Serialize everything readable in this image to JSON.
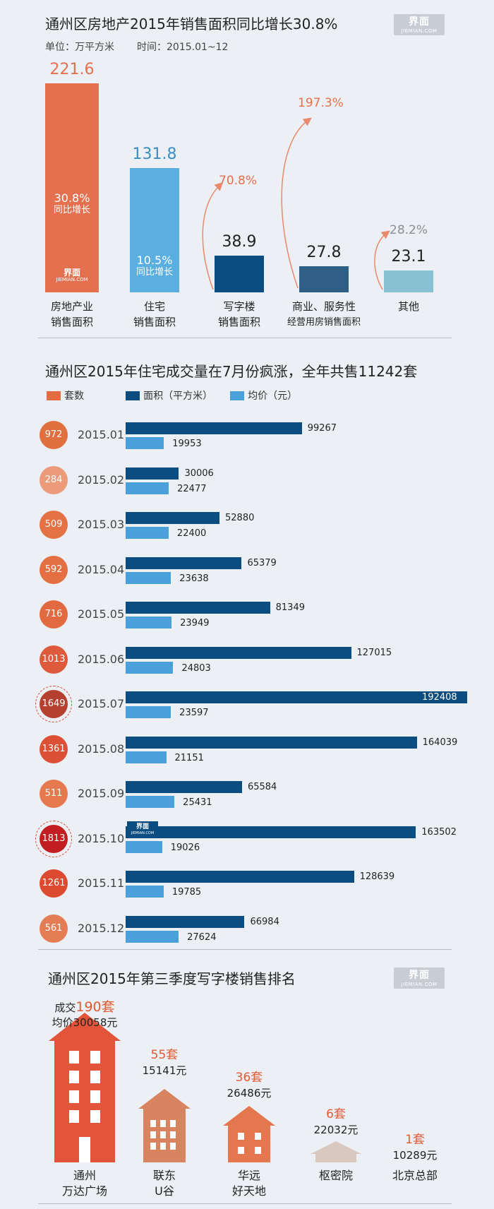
{
  "brand": {
    "logo_cn": "界面",
    "logo_en": "JIEMIAN.COM"
  },
  "section1": {
    "title": "通州区房地产2015年销售面积同比增长30.8%",
    "unit": "单位：万平方米",
    "period": "时间：2015.01~12"
  },
  "section2": {
    "title": "通州区2015年住宅成交量在7月份疯涨，全年共售11242套",
    "legend": [
      "套数",
      "面积（平方米）",
      "均价（元）"
    ]
  },
  "section3": {
    "title": "通州区2015年第三季度写字楼销售排名"
  },
  "chart_data": [
    {
      "type": "bar",
      "title": "通州区房地产2015年销售面积同比增长30.8%",
      "ylabel": "万平方米",
      "categories": [
        "房地产业\n销售面积",
        "住宅\n销售面积",
        "写字楼\n销售面积",
        "商业、服务性\n经营用房销售面积",
        "其他"
      ],
      "values": [
        221.6,
        131.8,
        38.9,
        27.8,
        23.1
      ],
      "value_labels": [
        "221.6",
        "131.8",
        "38.9",
        "27.8",
        "23.1"
      ],
      "growth_labels": [
        "30.8%",
        "10.5%",
        "70.8%",
        "197.3%",
        "28.2%"
      ],
      "growth_suffix": "同比增长",
      "ylim": [
        0,
        221.6
      ],
      "colors": [
        "#e4704f",
        "#5aaee0",
        "#0b4d80",
        "#2f5f86",
        "#88c2d2"
      ]
    },
    {
      "type": "bar",
      "title": "通州区2015年住宅成交量在7月份疯涨，全年共售11242套",
      "categories": [
        "2015.01",
        "2015.02",
        "2015.03",
        "2015.04",
        "2015.05",
        "2015.06",
        "2015.07",
        "2015.08",
        "2015.09",
        "2015.10",
        "2015.11",
        "2015.12"
      ],
      "series": [
        {
          "name": "套数",
          "values": [
            972,
            284,
            509,
            592,
            716,
            1013,
            1649,
            1361,
            511,
            1813,
            1261,
            561
          ],
          "color": "#e46a42"
        },
        {
          "name": "面积（平方米）",
          "values": [
            99267,
            30006,
            52880,
            65379,
            81349,
            127015,
            192408,
            164039,
            65584,
            163502,
            128639,
            66984
          ],
          "color": "#0b4d80"
        },
        {
          "name": "均价（元）",
          "values": [
            19953,
            22477,
            22400,
            23638,
            23949,
            24803,
            23597,
            21151,
            25431,
            19026,
            19785,
            27624
          ],
          "color": "#4aa0d8"
        }
      ],
      "xlim_area": [
        0,
        192408
      ]
    },
    {
      "type": "bar",
      "title": "通州区2015年第三季度写字楼销售排名",
      "categories": [
        "通州\n万达广场",
        "联东\nU谷",
        "华远\n好天地",
        "枢密院",
        "北京总部"
      ],
      "series": [
        {
          "name": "成交套数",
          "values": [
            190,
            55,
            36,
            6,
            1
          ]
        },
        {
          "name": "均价（元）",
          "values": [
            30058,
            15141,
            26486,
            22032,
            10289
          ]
        }
      ],
      "count_labels": [
        "190套",
        "55套",
        "36套",
        "6套",
        "1套"
      ],
      "price_labels": [
        "30058元",
        "15141元",
        "26486元",
        "22032元",
        "10289元"
      ],
      "first_prefix": [
        "成交",
        "均价"
      ],
      "colors": [
        "#e2553a",
        "#d98461",
        "#e5774f",
        "#d9c8bf",
        "#eceff3"
      ]
    }
  ]
}
